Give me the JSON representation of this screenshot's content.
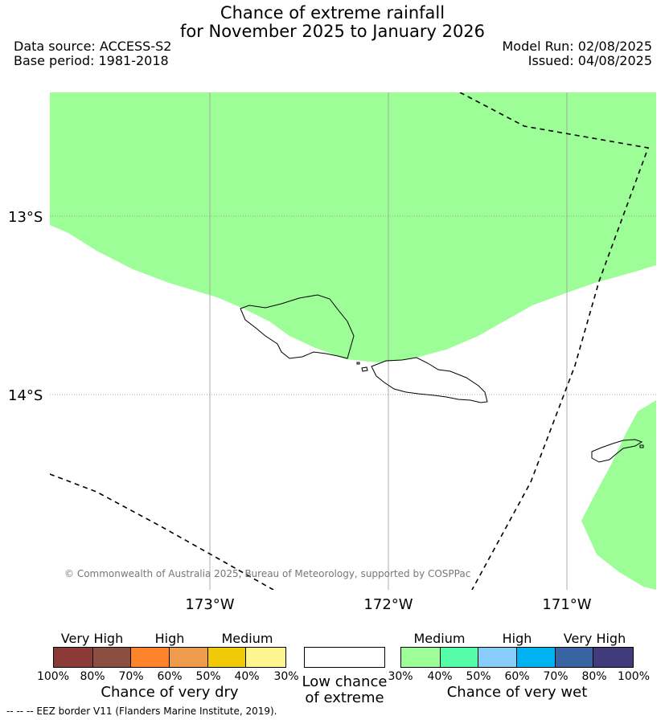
{
  "header": {
    "title_line1": "Chance of extreme rainfall",
    "title_line2": "for November 2025 to January 2026",
    "data_source": "Data source: ACCESS-S2",
    "base_period": "Base period: 1981-2018",
    "model_run": "Model Run: 02/08/2025",
    "issued": "Issued: 04/08/2025"
  },
  "map": {
    "lat_labels": [
      "13°S",
      "14°S"
    ],
    "lon_labels": [
      "173°W",
      "172°W",
      "171°W"
    ],
    "copyright": "© Commonwealth of Australia 2025, Bureau of Meteorology, supported by COSPPac",
    "colors": {
      "medium_wet": "#9dfe98",
      "land_outline": "#000000",
      "grid": "#999999"
    }
  },
  "legend_dry": {
    "categories": [
      "Very High",
      "High",
      "Medium"
    ],
    "ticks": [
      "100%",
      "80%",
      "70%",
      "60%",
      "50%",
      "40%",
      "30%"
    ],
    "colors": [
      "#8b3a37",
      "#8b4e40",
      "#fd842a",
      "#ef9b4d",
      "#f0ca06",
      "#fef590"
    ],
    "caption": "Chance of very dry"
  },
  "legend_low": {
    "caption_line1": "Low chance",
    "caption_line2": "of extreme",
    "color": "#ffffff"
  },
  "legend_wet": {
    "categories": [
      "Medium",
      "High",
      "Very High"
    ],
    "ticks": [
      "30%",
      "40%",
      "50%",
      "60%",
      "70%",
      "80%",
      "100%"
    ],
    "colors": [
      "#9dfe98",
      "#56fda8",
      "#88cdf9",
      "#00b3f0",
      "#3864a1",
      "#423b7b"
    ],
    "caption": "Chance of very wet"
  },
  "footnote": "--  --  -- EEZ border V11 (Flanders Marine Institute, 2019)."
}
